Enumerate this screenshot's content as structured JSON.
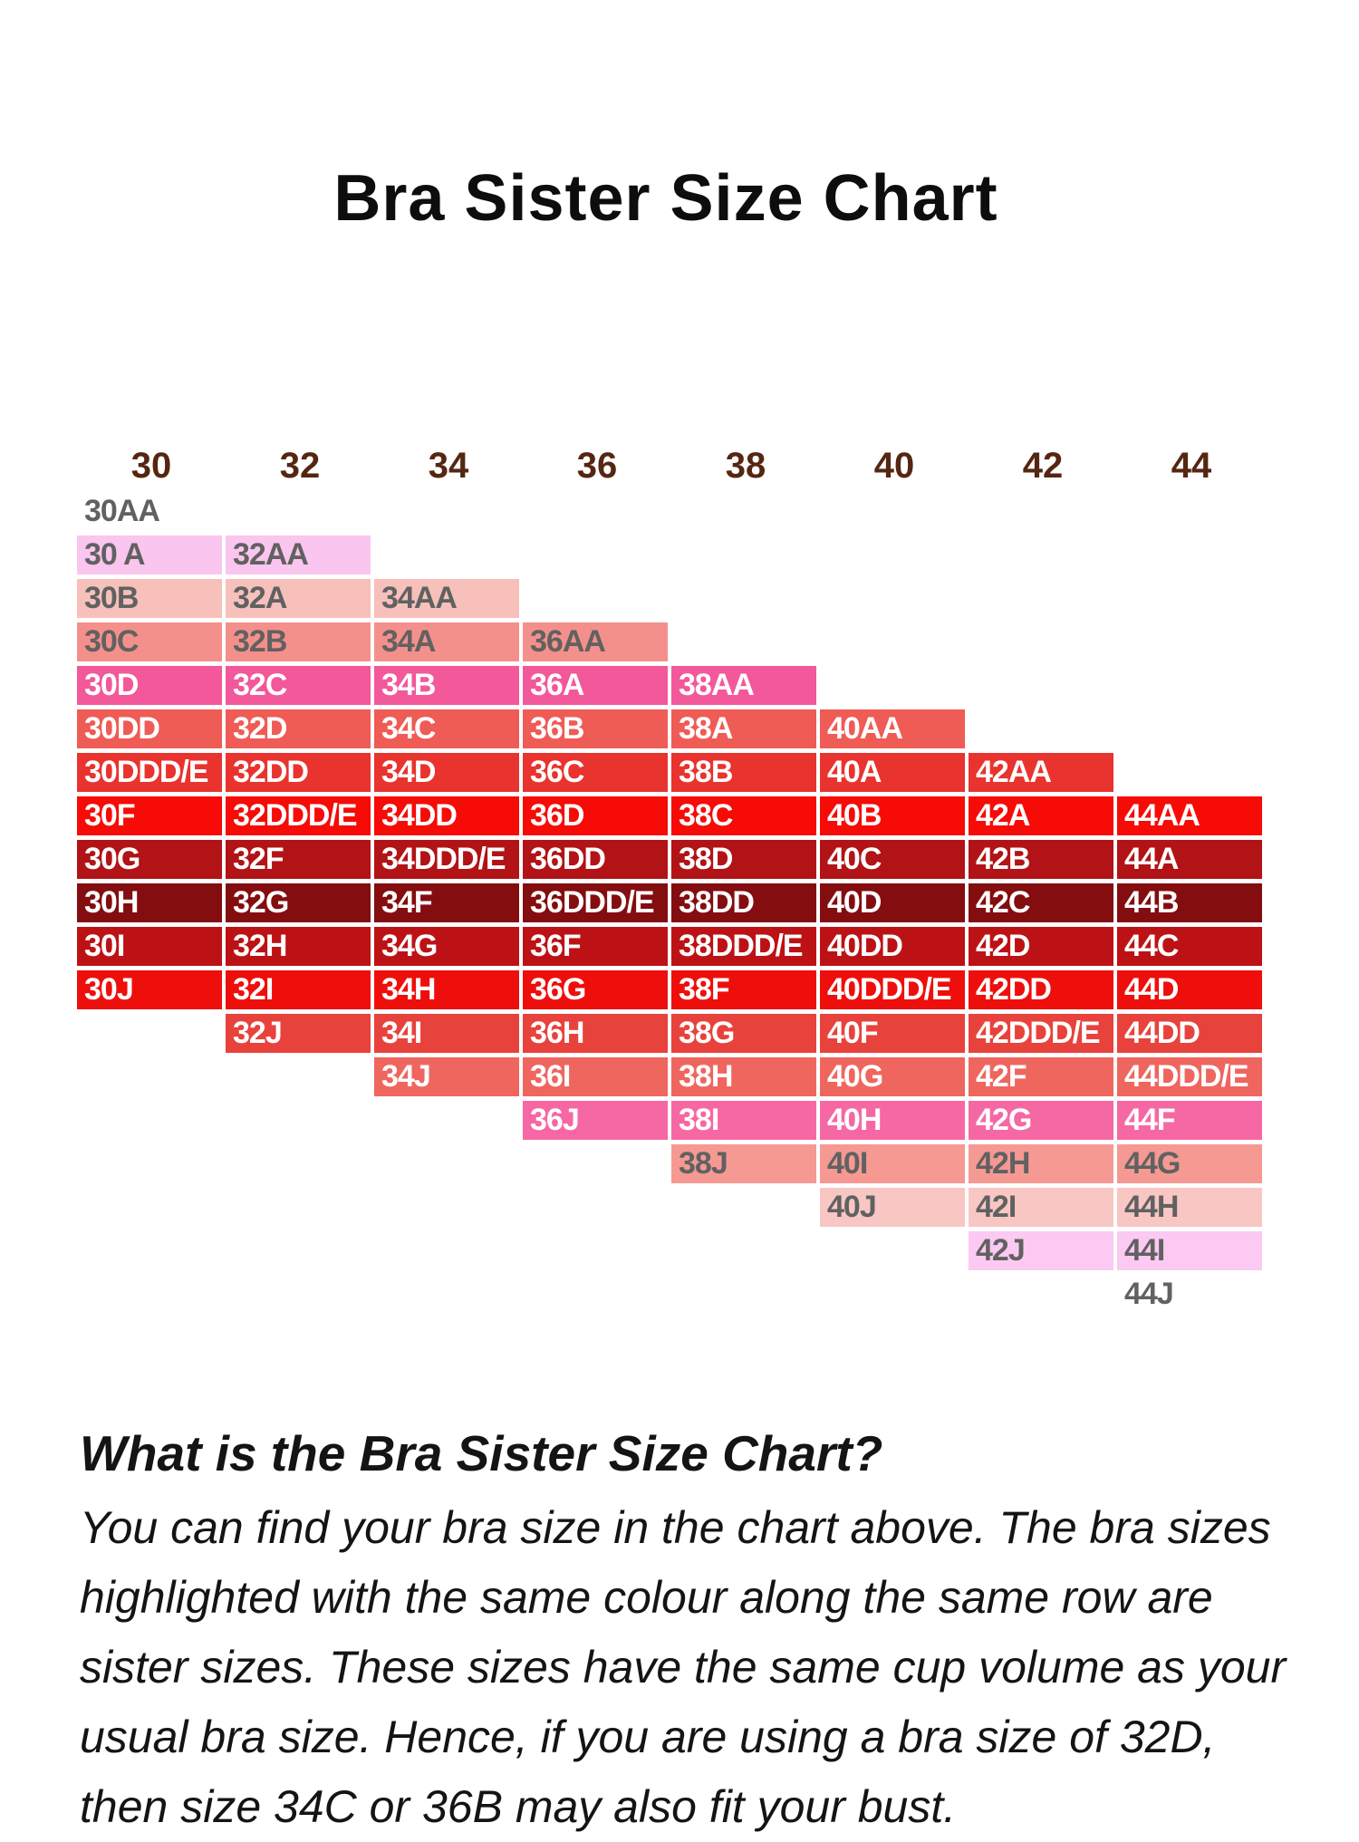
{
  "title": "Bra Sister Size Chart",
  "chart_data": {
    "type": "table",
    "title": "Bra Sister Size Chart",
    "band_headers": [
      "30",
      "32",
      "34",
      "36",
      "38",
      "40",
      "42",
      "44"
    ],
    "cup_sizes": [
      "AA",
      "A",
      "B",
      "C",
      "D",
      "DD",
      "DDD/E",
      "F",
      "G",
      "H",
      "I",
      "J"
    ],
    "header_text_color": "#552611",
    "gray_text_color": "#616161",
    "layout_note": "staircase table: each band column starts one row lower than the previous; cells sharing a visual row are sister sizes and share a color",
    "sister_rows": [
      {
        "cells": [
          "30AA"
        ],
        "bg": "#ffffff",
        "fg": "#616161"
      },
      {
        "cells": [
          "30 A",
          "32AA"
        ],
        "bg": "#fac5ee",
        "fg": "#616161"
      },
      {
        "cells": [
          "30B",
          "32A",
          "34AA"
        ],
        "bg": "#f7c0bb",
        "fg": "#616161"
      },
      {
        "cells": [
          "30C",
          "32B",
          "34A",
          "36AA"
        ],
        "bg": "#f4908b",
        "fg": "#616161"
      },
      {
        "cells": [
          "30D",
          "32C",
          "34B",
          "36A",
          "38AA"
        ],
        "bg": "#f2589a",
        "fg": "#ffffff"
      },
      {
        "cells": [
          "30DD",
          "32D",
          "34C",
          "36B",
          "38A",
          "40AA"
        ],
        "bg": "#ef5b55",
        "fg": "#ffffff"
      },
      {
        "cells": [
          "30DDD/E",
          "32DD",
          "34D",
          "36C",
          "38B",
          "40A",
          "42AA"
        ],
        "bg": "#e9332e",
        "fg": "#ffffff"
      },
      {
        "cells": [
          "30F",
          "32DDD/E",
          "34DD",
          "36D",
          "38C",
          "40B",
          "42A",
          "44AA"
        ],
        "bg": "#f60b07",
        "fg": "#ffffff"
      },
      {
        "cells": [
          "30G",
          "32F",
          "34DDD/E",
          "36DD",
          "38D",
          "40C",
          "42B",
          "44A"
        ],
        "bg": "#b21316",
        "fg": "#ffffff"
      },
      {
        "cells": [
          "30H",
          "32G",
          "34F",
          "36DDD/E",
          "38DD",
          "40D",
          "42C",
          "44B"
        ],
        "bg": "#840d0f",
        "fg": "#ffffff"
      },
      {
        "cells": [
          "30I",
          "32H",
          "34G",
          "36F",
          "38DDD/E",
          "40DD",
          "42D",
          "44C"
        ],
        "bg": "#bd1215",
        "fg": "#ffffff"
      },
      {
        "cells": [
          "30J",
          "32I",
          "34H",
          "36G",
          "38F",
          "40DDD/E",
          "42DD",
          "44D"
        ],
        "bg": "#ee0f0c",
        "fg": "#ffffff"
      },
      {
        "cells": [
          "32J",
          "34I",
          "36H",
          "38G",
          "40F",
          "42DDD/E",
          "44DD"
        ],
        "bg": "#e8423c",
        "fg": "#ffffff"
      },
      {
        "cells": [
          "34J",
          "36I",
          "38H",
          "40G",
          "42F",
          "44DDD/E"
        ],
        "bg": "#ef665f",
        "fg": "#ffffff"
      },
      {
        "cells": [
          "36J",
          "38I",
          "40H",
          "42G",
          "44F"
        ],
        "bg": "#f668a4",
        "fg": "#ffffff"
      },
      {
        "cells": [
          "38J",
          "40I",
          "42H",
          "44G"
        ],
        "bg": "#f59992",
        "fg": "#616161"
      },
      {
        "cells": [
          "40J",
          "42I",
          "44H"
        ],
        "bg": "#f8c7c3",
        "fg": "#616161"
      },
      {
        "cells": [
          "42J",
          "44I"
        ],
        "bg": "#fbc9f2",
        "fg": "#616161"
      },
      {
        "cells": [
          "44J"
        ],
        "bg": "#ffffff",
        "fg": "#616161"
      }
    ]
  },
  "explanation": {
    "heading": "What is the Bra Sister Size Chart?",
    "lines": [
      "You can find your bra size in the chart above. The bra sizes",
      "highlighted with the same colour along the same row are",
      "sister sizes. These sizes have the same cup volume as your",
      "usual bra size. Hence, if you are using a bra size of 32D,",
      "then size 34C or 36B may also fit your bust."
    ]
  }
}
